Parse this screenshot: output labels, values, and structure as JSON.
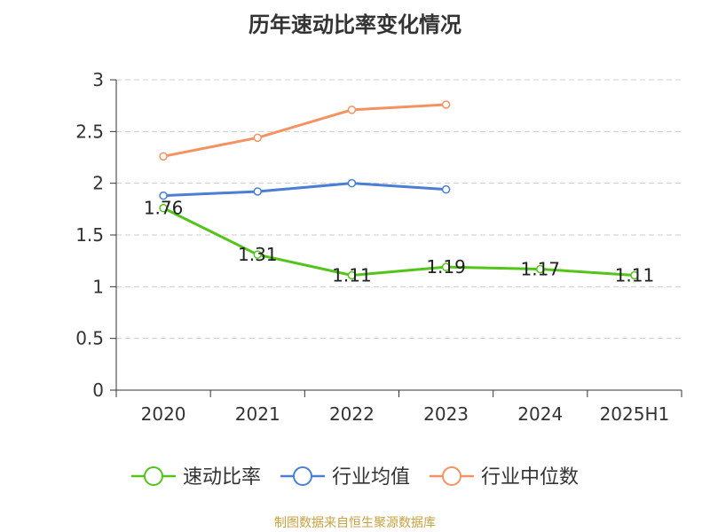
{
  "title": "历年速动比率变化情况",
  "source": "制图数据来自恒生聚源数据库",
  "chart_data": {
    "type": "line",
    "categories": [
      "2020",
      "2021",
      "2022",
      "2023",
      "2024",
      "2025H1"
    ],
    "ylim": [
      0,
      3
    ],
    "yticks": [
      "0",
      "0.5",
      "1",
      "1.5",
      "2",
      "2.5",
      "3"
    ],
    "grid": true,
    "legend_position": "bottom",
    "series": [
      {
        "name": "速动比率",
        "color": "#52c41a",
        "values": [
          1.76,
          1.31,
          1.11,
          1.19,
          1.17,
          1.11
        ],
        "labels": [
          "1.76",
          "1.31",
          "1.11",
          "1.19",
          "1.17",
          "1.11"
        ]
      },
      {
        "name": "行业均值",
        "color": "#4a7fd4",
        "values": [
          1.88,
          1.92,
          2.0,
          1.94,
          null,
          null
        ]
      },
      {
        "name": "行业中位数",
        "color": "#f59262",
        "values": [
          2.26,
          2.44,
          2.71,
          2.76,
          null,
          null
        ]
      }
    ]
  }
}
